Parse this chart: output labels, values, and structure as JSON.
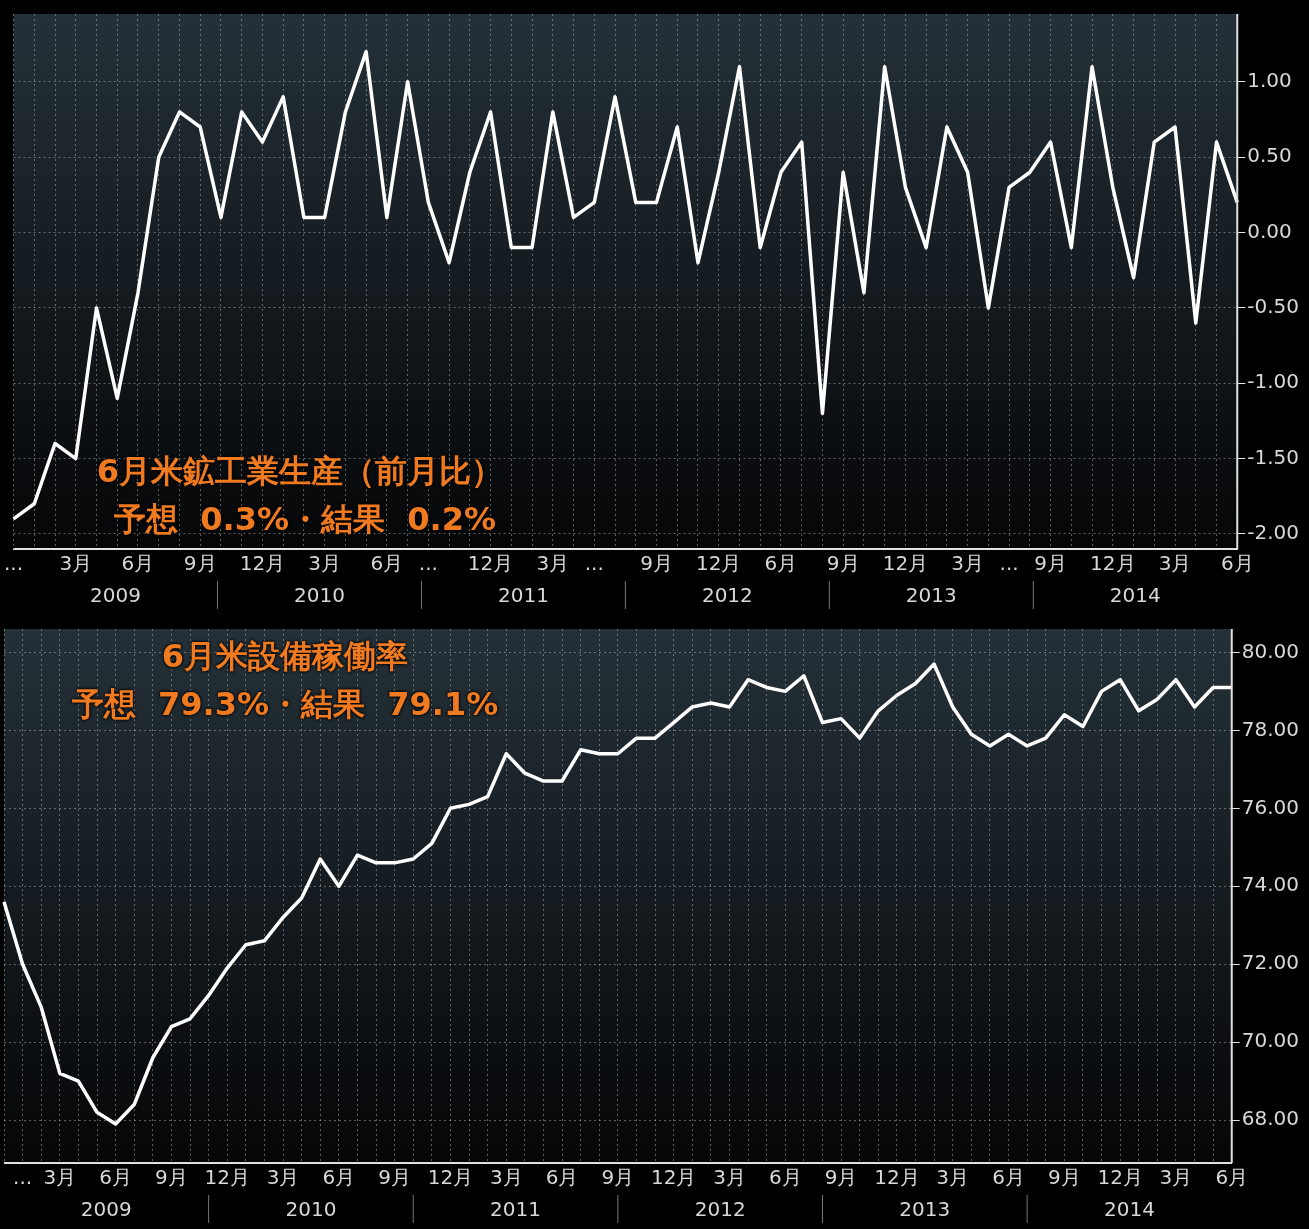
{
  "chart_data": [
    {
      "type": "line",
      "title": "6月米鉱工業生産（前月比）",
      "subtitle": "予想  0.3%・結果  0.2%",
      "categories": [
        "...",
        null,
        null,
        "3月",
        null,
        null,
        "6月",
        null,
        null,
        "9月",
        null,
        null,
        "12月",
        null,
        null,
        "3月",
        null,
        null,
        "6月",
        null,
        "...",
        null,
        null,
        "12月",
        null,
        null,
        "3月",
        null,
        "...",
        null,
        null,
        "9月",
        null,
        null,
        "12月",
        null,
        null,
        "6月",
        null,
        null,
        "9月",
        null,
        null,
        "12月",
        null,
        null,
        "3月",
        null,
        "...",
        null,
        "9月",
        null,
        null,
        "12月",
        null,
        null,
        "3月",
        null,
        null,
        "6月"
      ],
      "series": [
        {
          "color": "#ffffff",
          "values": [
            -1.9,
            -1.8,
            -1.4,
            -1.5,
            -0.5,
            -1.1,
            -0.4,
            0.5,
            0.8,
            0.7,
            0.1,
            0.8,
            0.6,
            0.9,
            0.1,
            0.1,
            0.8,
            1.2,
            0.1,
            1.0,
            0.2,
            -0.2,
            0.4,
            0.8,
            -0.1,
            -0.1,
            0.8,
            0.1,
            0.2,
            0.9,
            0.2,
            0.2,
            0.7,
            -0.2,
            0.4,
            1.1,
            -0.1,
            0.4,
            0.6,
            -1.2,
            0.4,
            -0.4,
            1.1,
            0.3,
            -0.1,
            0.7,
            0.4,
            -0.5,
            0.3,
            0.4,
            0.6,
            -0.1,
            1.1,
            0.3,
            -0.3,
            0.6,
            0.7,
            -0.6,
            0.6,
            0.2
          ]
        }
      ],
      "ylim": [
        -2.1,
        1.45
      ],
      "yticks": [
        {
          "value": -2,
          "label": "-2.00"
        },
        {
          "value": -1.5,
          "label": "-1.50"
        },
        {
          "value": -1,
          "label": "-1.00"
        },
        {
          "value": -0.5,
          "label": "-0.50"
        },
        {
          "value": 0,
          "label": "0.00"
        },
        {
          "value": 0.5,
          "label": "0.50"
        },
        {
          "value": 1,
          "label": "1.00"
        }
      ],
      "annotations": [
        "2009",
        "2010",
        "2011",
        "2012",
        "2013",
        "2014"
      ],
      "grid": true,
      "legend": false
    },
    {
      "type": "line",
      "title": "6月米設備稼働率",
      "subtitle": "予想  79.3%・結果  79.1%",
      "categories": [
        null,
        "...",
        null,
        "3月",
        null,
        null,
        "6月",
        null,
        null,
        "9月",
        null,
        null,
        "12月",
        null,
        null,
        "3月",
        null,
        null,
        "6月",
        null,
        null,
        "9月",
        null,
        null,
        "12月",
        null,
        null,
        "3月",
        null,
        null,
        "6月",
        null,
        null,
        "9月",
        null,
        null,
        "12月",
        null,
        null,
        "3月",
        null,
        null,
        "6月",
        null,
        null,
        "9月",
        null,
        null,
        "12月",
        null,
        null,
        "3月",
        null,
        null,
        "6月",
        null,
        null,
        "9月",
        null,
        null,
        "12月",
        null,
        null,
        "3月",
        null,
        null,
        "6月"
      ],
      "series": [
        {
          "color": "#ffffff",
          "values": [
            73.6,
            72.0,
            70.9,
            69.2,
            69.0,
            68.2,
            67.9,
            68.4,
            69.6,
            70.4,
            70.6,
            71.2,
            71.9,
            72.5,
            72.6,
            73.2,
            73.7,
            74.7,
            74.0,
            74.8,
            74.6,
            74.6,
            74.7,
            75.1,
            76.0,
            76.1,
            76.3,
            77.4,
            76.9,
            76.7,
            76.7,
            77.5,
            77.4,
            77.4,
            77.8,
            77.8,
            78.2,
            78.6,
            78.7,
            78.6,
            79.3,
            79.1,
            79.0,
            79.4,
            78.2,
            78.3,
            77.8,
            78.5,
            78.9,
            79.2,
            79.7,
            78.6,
            77.9,
            77.6,
            77.9,
            77.6,
            77.8,
            78.4,
            78.1,
            79.0,
            79.3,
            78.5,
            78.8,
            79.3,
            78.6,
            79.1,
            79.1
          ]
        }
      ],
      "ylim": [
        66.9,
        80.6
      ],
      "yticks": [
        {
          "value": 68,
          "label": "68.00"
        },
        {
          "value": 70,
          "label": "70.00"
        },
        {
          "value": 72,
          "label": "72.00"
        },
        {
          "value": 74,
          "label": "74.00"
        },
        {
          "value": 76,
          "label": "76.00"
        },
        {
          "value": 78,
          "label": "78.00"
        },
        {
          "value": 80,
          "label": "80.00"
        }
      ],
      "annotations": [
        "2009",
        "2010",
        "2011",
        "2012",
        "2013",
        "2014"
      ],
      "grid": true,
      "legend": false
    }
  ]
}
